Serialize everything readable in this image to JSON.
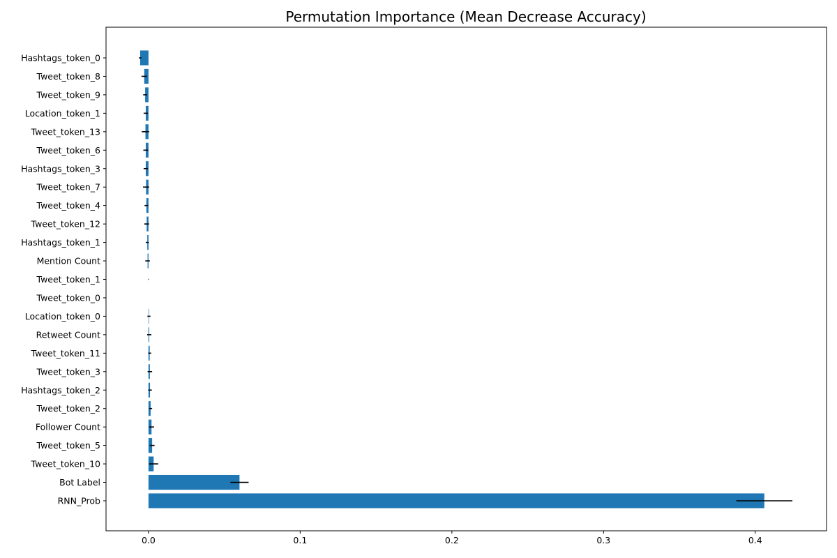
{
  "chart_data": {
    "type": "bar",
    "orientation": "horizontal",
    "title": "Permutation Importance (Mean Decrease Accuracy)",
    "xlabel": "",
    "ylabel": "",
    "xlim": [
      -0.028,
      0.447
    ],
    "x_ticks": [
      0.0,
      0.1,
      0.2,
      0.3,
      0.4
    ],
    "x_tick_labels": [
      "0.0",
      "0.1",
      "0.2",
      "0.3",
      "0.4"
    ],
    "grid": false,
    "bar_color": "#1f77b4",
    "error_color": "#000000",
    "categories": [
      "Hashtags_token_0",
      "Tweet_token_8",
      "Tweet_token_9",
      "Location_token_1",
      "Tweet_token_13",
      "Tweet_token_6",
      "Hashtags_token_3",
      "Tweet_token_7",
      "Tweet_token_4",
      "Tweet_token_12",
      "Hashtags_token_1",
      "Mention Count",
      "Tweet_token_1",
      "Tweet_token_0",
      "Location_token_0",
      "Retweet Count",
      "Tweet_token_11",
      "Tweet_token_3",
      "Hashtags_token_2",
      "Tweet_token_2",
      "Follower Count",
      "Tweet_token_5",
      "Tweet_token_10",
      "Bot Label",
      "RNN_Prob"
    ],
    "values": [
      -0.0055,
      -0.0028,
      -0.0022,
      -0.0018,
      -0.002,
      -0.0018,
      -0.0018,
      -0.0016,
      -0.0014,
      -0.0012,
      -0.0008,
      -0.0006,
      0.0,
      0.0,
      0.0003,
      0.0005,
      0.0008,
      0.0009,
      0.001,
      0.0014,
      0.002,
      0.0024,
      0.0034,
      0.06,
      0.406
    ],
    "errors": [
      0.0008,
      0.0018,
      0.0013,
      0.0014,
      0.0024,
      0.0016,
      0.0014,
      0.002,
      0.0012,
      0.0016,
      0.001,
      0.0015,
      0.0002,
      0.0,
      0.001,
      0.0014,
      0.001,
      0.0015,
      0.0012,
      0.001,
      0.0017,
      0.0016,
      0.003,
      0.006,
      0.0185
    ]
  }
}
